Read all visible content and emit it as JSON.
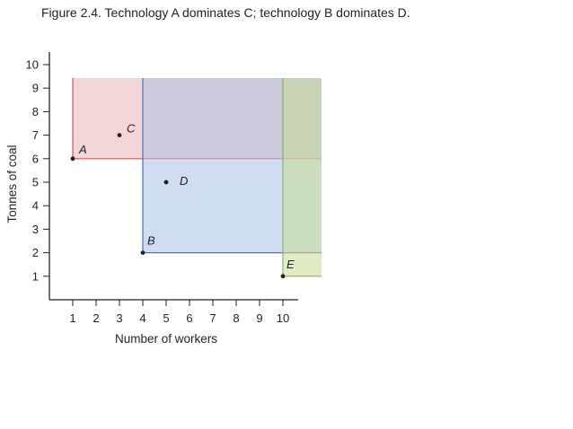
{
  "title": "Figure 2.4. Technology A dominates C; technology B dominates D.",
  "chart_data": {
    "type": "scatter",
    "title": "Figure 2.4. Technology A dominates C; technology B dominates D.",
    "xlabel": "Number of workers",
    "ylabel": "Tonnes of coal",
    "xlim": [
      0,
      10.5
    ],
    "ylim": [
      0,
      10
    ],
    "xticks": [
      1,
      2,
      3,
      4,
      5,
      6,
      7,
      8,
      9,
      10
    ],
    "yticks": [
      1,
      2,
      3,
      4,
      5,
      6,
      7,
      8,
      9,
      10
    ],
    "grid": false,
    "points": [
      {
        "label": "A",
        "x": 1,
        "y": 6
      },
      {
        "label": "B",
        "x": 4,
        "y": 2
      },
      {
        "label": "C",
        "x": 3,
        "y": 7
      },
      {
        "label": "D",
        "x": 5,
        "y": 5
      },
      {
        "label": "E",
        "x": 10,
        "y": 1
      }
    ],
    "regions": [
      {
        "name": "A",
        "x": [
          1,
          11.6
        ],
        "y": [
          6,
          9.4
        ],
        "color": "#e8b4b8"
      },
      {
        "name": "B",
        "x": [
          4,
          11.6
        ],
        "y": [
          2,
          9.4
        ],
        "color": "#a9c0e2"
      },
      {
        "name": "E",
        "x": [
          10,
          11.6
        ],
        "y": [
          1,
          9.4
        ],
        "color": "#c8dc96"
      }
    ],
    "region_edges": {
      "A": "#c9585c",
      "B": "#4a74b8",
      "E": "#8fb553"
    }
  }
}
